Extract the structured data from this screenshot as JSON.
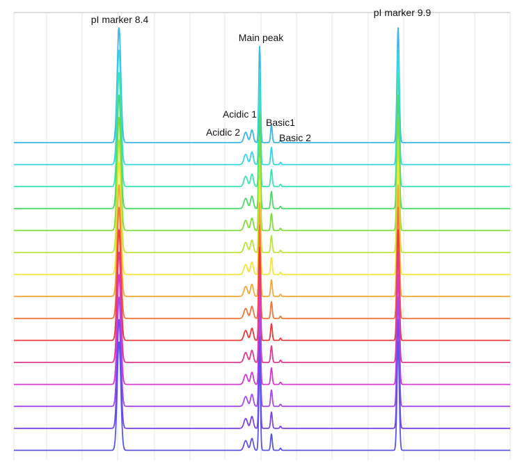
{
  "chart_data": {
    "type": "line",
    "title": "",
    "xlabel": "",
    "ylabel": "",
    "grid": true,
    "layout": "stacked traces, vertically offset",
    "peaks": [
      {
        "name": "pI marker 8.4",
        "height": 1.0,
        "width": 2.6
      },
      {
        "name": "Acidic 2",
        "height": 0.09,
        "width": 2.5
      },
      {
        "name": "Acidic 1",
        "height": 0.11,
        "width": 2.0
      },
      {
        "name": "Main peak",
        "height": 0.84,
        "width": 1.2
      },
      {
        "name": "Basic1",
        "height": 0.15,
        "width": 1.2
      },
      {
        "name": "Basic 2",
        "height": 0.02,
        "width": 1.0
      },
      {
        "name": "pI marker 9.9",
        "height": 1.0,
        "width": 1.6
      }
    ],
    "annotations": [
      {
        "text": "pI marker 8.4",
        "peak": "pI marker 8.4"
      },
      {
        "text": "Main peak",
        "peak": "Main peak"
      },
      {
        "text": "Acidic 1",
        "peak": "Acidic 1"
      },
      {
        "text": "Acidic 2",
        "peak": "Acidic 2"
      },
      {
        "text": "Basic1",
        "peak": "Basic1"
      },
      {
        "text": "Basic 2",
        "peak": "Basic 2"
      },
      {
        "text": "pI marker 9.9",
        "peak": "pI marker 9.9"
      }
    ],
    "series": [
      {
        "color": "#3bb6e6"
      },
      {
        "color": "#35d6e6"
      },
      {
        "color": "#3de3b4"
      },
      {
        "color": "#4cd96a"
      },
      {
        "color": "#7ddd3a"
      },
      {
        "color": "#b9e53a"
      },
      {
        "color": "#f0e63a"
      },
      {
        "color": "#f4a83a"
      },
      {
        "color": "#f2753a"
      },
      {
        "color": "#ec3a3a"
      },
      {
        "color": "#e23a8c"
      },
      {
        "color": "#d63ad0"
      },
      {
        "color": "#a64af0"
      },
      {
        "color": "#7a45ea"
      },
      {
        "color": "#5a55e6"
      }
    ]
  }
}
